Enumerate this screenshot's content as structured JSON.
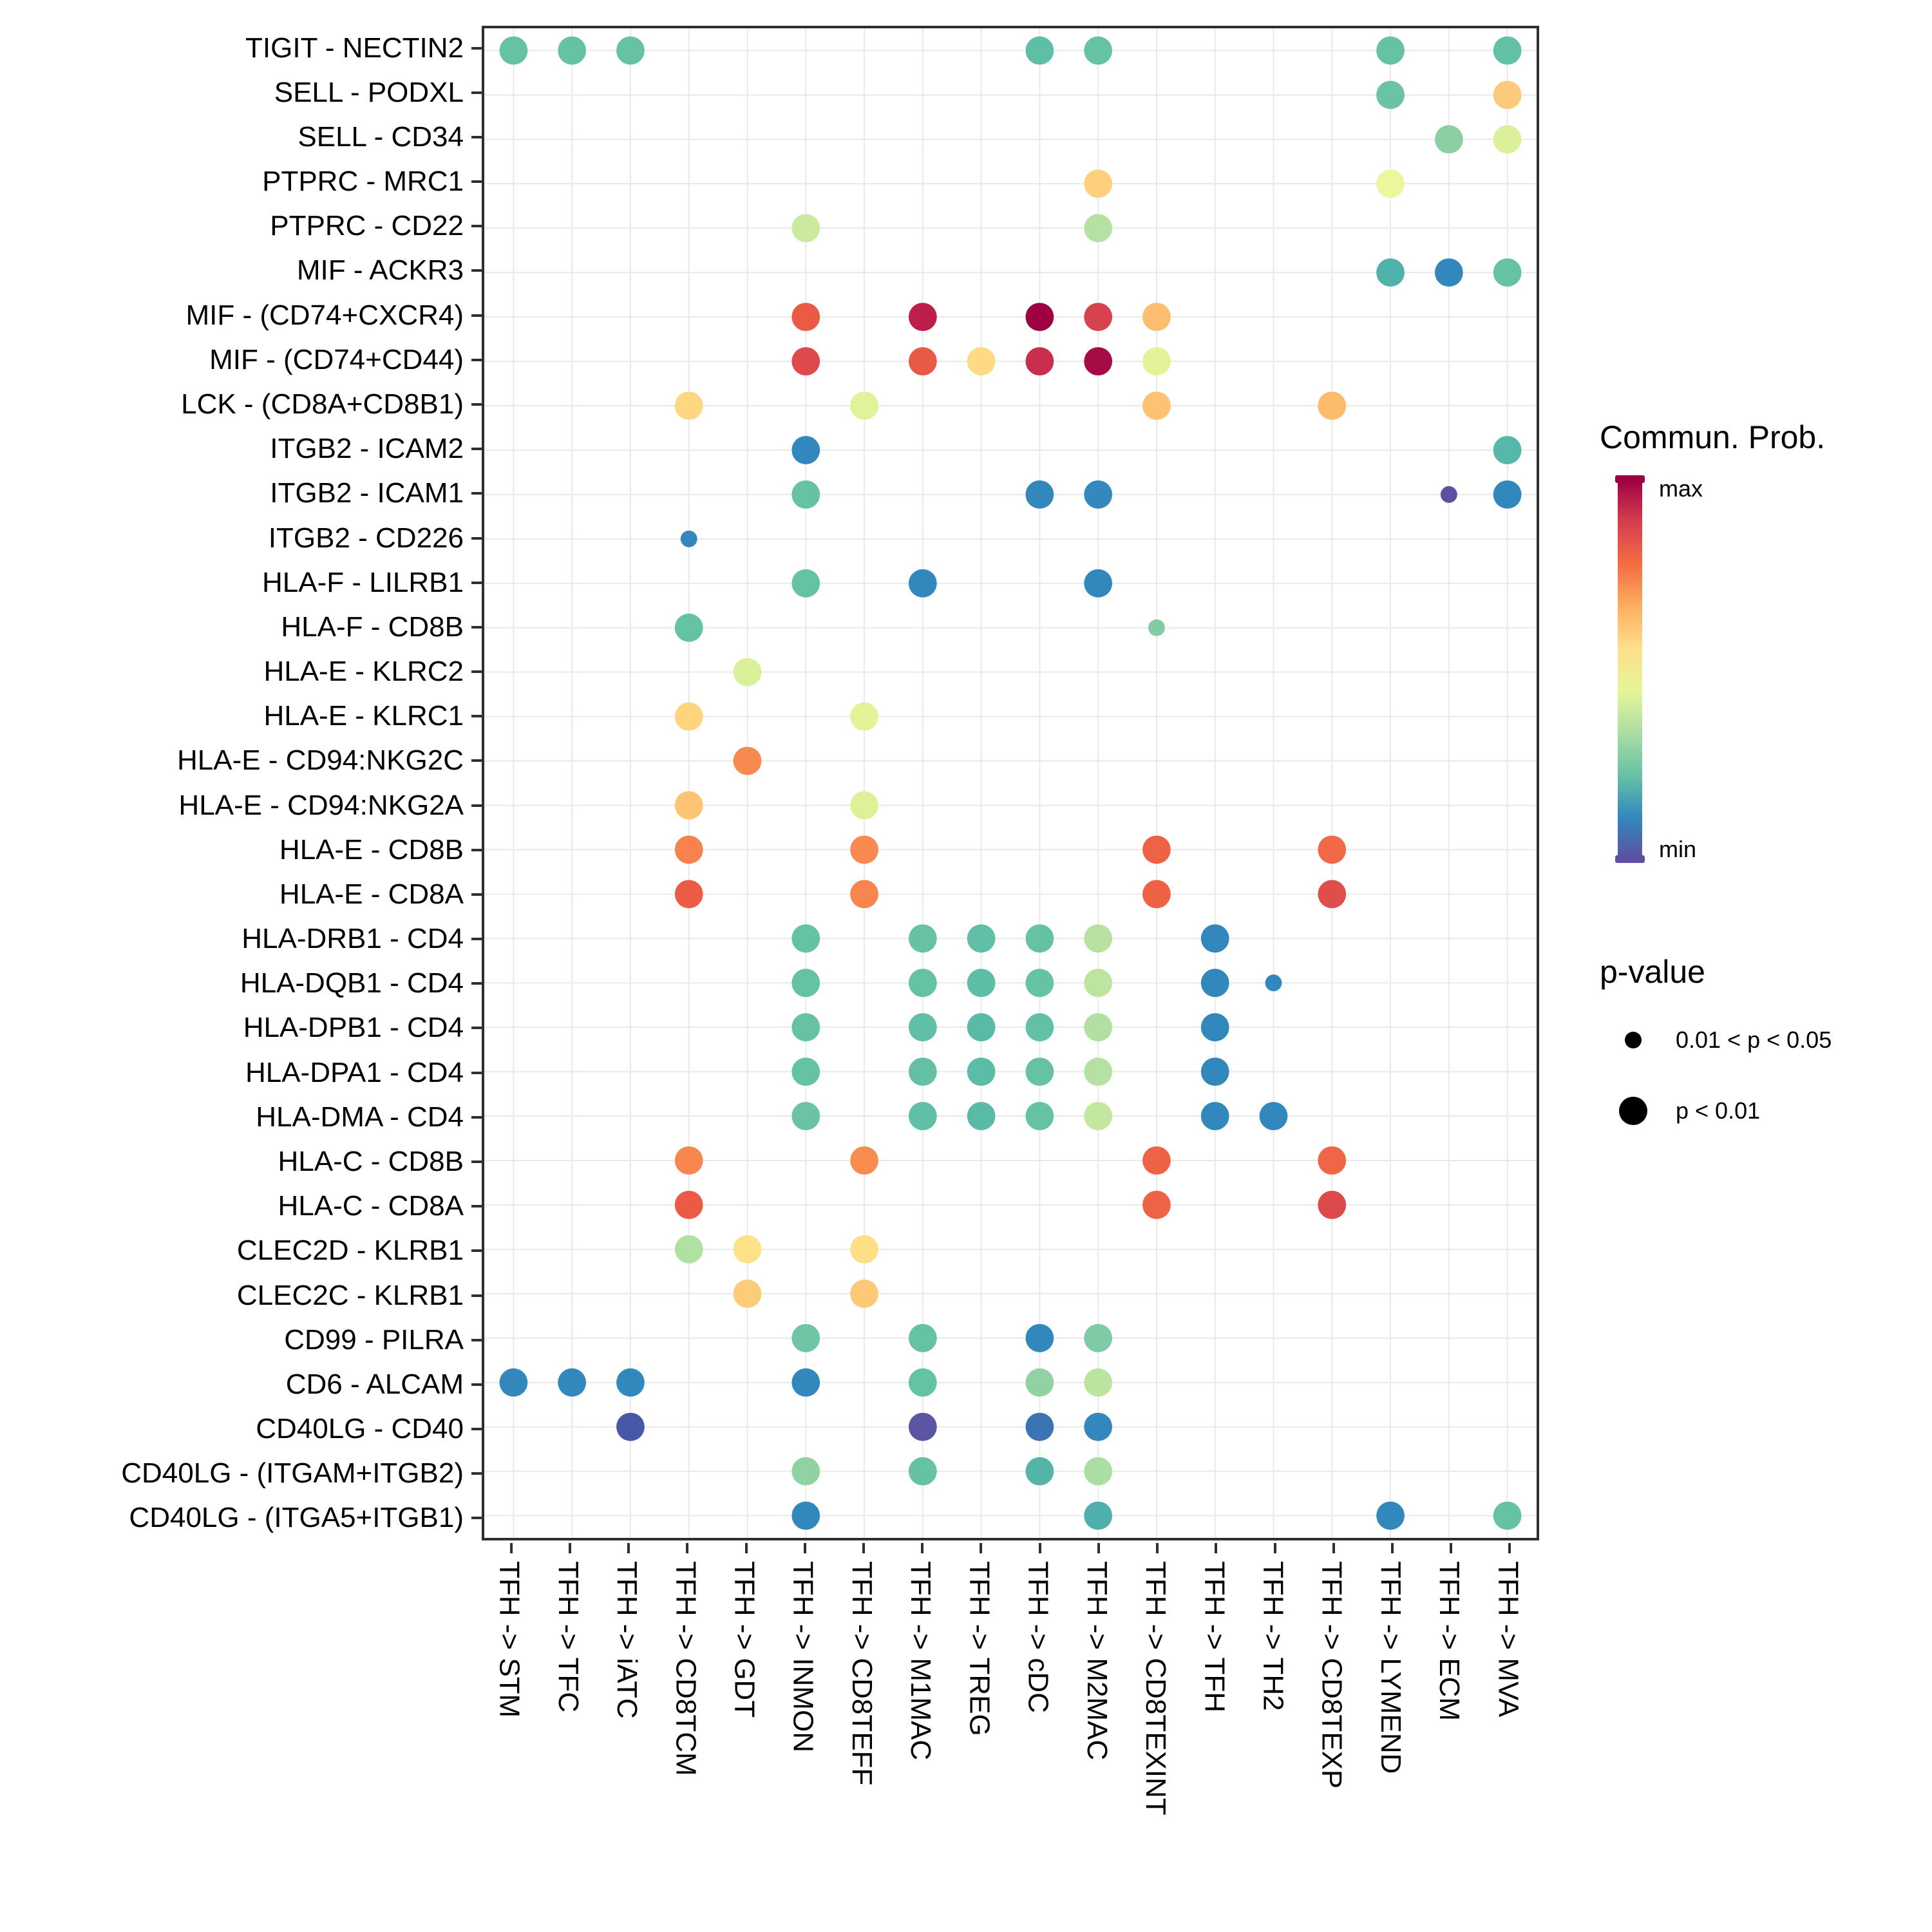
{
  "chart_data": {
    "type": "bubble",
    "description": "Cell-cell communication dot plot: ligand-receptor pairs (rows) vs sender->receiver cell pairs (columns); dot color = communication probability, dot size = p-value class",
    "x_categories": [
      "TFH -> STM",
      "TFH -> TFC",
      "TFH -> iATC",
      "TFH -> CD8TCM",
      "TFH -> GDT",
      "TFH -> INMON",
      "TFH -> CD8TEFF",
      "TFH -> M1MAC",
      "TFH -> TREG",
      "TFH -> cDC",
      "TFH -> M2MAC",
      "TFH -> CD8TEXINT",
      "TFH -> TFH",
      "TFH -> TH2",
      "TFH -> CD8TEXP",
      "TFH -> LYMEND",
      "TFH -> ECM",
      "TFH -> MVA"
    ],
    "y_categories": [
      "TIGIT - NECTIN2",
      "SELL - PODXL",
      "SELL - CD34",
      "PTPRC - MRC1",
      "PTPRC - CD22",
      "MIF - ACKR3",
      "MIF - (CD74+CXCR4)",
      "MIF - (CD74+CD44)",
      "LCK - (CD8A+CD8B1)",
      "ITGB2 - ICAM2",
      "ITGB2 - ICAM1",
      "ITGB2 - CD226",
      "HLA-F - LILRB1",
      "HLA-F - CD8B",
      "HLA-E - KLRC2",
      "HLA-E - KLRC1",
      "HLA-E - CD94:NKG2C",
      "HLA-E - CD94:NKG2A",
      "HLA-E - CD8B",
      "HLA-E - CD8A",
      "HLA-DRB1 - CD4",
      "HLA-DQB1 - CD4",
      "HLA-DPB1 - CD4",
      "HLA-DPA1 - CD4",
      "HLA-DMA - CD4",
      "HLA-C - CD8B",
      "HLA-C - CD8A",
      "CLEC2D - KLRB1",
      "CLEC2C - KLRB1",
      "CD99 - PILRA",
      "CD6 - ALCAM",
      "CD40LG - CD40",
      "CD40LG - (ITGAM+ITGB2)",
      "CD40LG - (ITGA5+ITGB1)"
    ],
    "color_legend": {
      "title": "Commun. Prob.",
      "max_label": "max",
      "min_label": "min",
      "gradient_top_to_bottom": [
        "#9E0142",
        "#D53E4F",
        "#F46D43",
        "#FDAE61",
        "#FEE08B",
        "#E6F598",
        "#ABDDA4",
        "#66C2A5",
        "#3288BD",
        "#5E4FA2"
      ]
    },
    "size_legend": {
      "title": "p-value",
      "items": [
        {
          "label": "0.01 < p < 0.05",
          "size": "small"
        },
        {
          "label": "p < 0.01",
          "size": "large"
        }
      ]
    },
    "size_key": {
      "L": "p < 0.01",
      "S": "0.01 < p < 0.05"
    },
    "points": [
      {
        "r": 0,
        "c": 0,
        "p": "L",
        "col": "#66C2A5"
      },
      {
        "r": 0,
        "c": 1,
        "p": "L",
        "col": "#66C2A5"
      },
      {
        "r": 0,
        "c": 2,
        "p": "L",
        "col": "#66C2A5"
      },
      {
        "r": 0,
        "c": 9,
        "p": "L",
        "col": "#5FBFA6"
      },
      {
        "r": 0,
        "c": 10,
        "p": "L",
        "col": "#66C2A5"
      },
      {
        "r": 0,
        "c": 15,
        "p": "L",
        "col": "#66C2A5"
      },
      {
        "r": 0,
        "c": 17,
        "p": "L",
        "col": "#63C1A5"
      },
      {
        "r": 1,
        "c": 15,
        "p": "L",
        "col": "#6AC3A4"
      },
      {
        "r": 1,
        "c": 17,
        "p": "L",
        "col": "#FDC97A"
      },
      {
        "r": 2,
        "c": 16,
        "p": "L",
        "col": "#8CCFA5"
      },
      {
        "r": 2,
        "c": 17,
        "p": "L",
        "col": "#DCF09A"
      },
      {
        "r": 3,
        "c": 10,
        "p": "L",
        "col": "#FDD07D"
      },
      {
        "r": 3,
        "c": 15,
        "p": "L",
        "col": "#ECF69D"
      },
      {
        "r": 4,
        "c": 5,
        "p": "L",
        "col": "#CBEA9E"
      },
      {
        "r": 4,
        "c": 10,
        "p": "L",
        "col": "#B5E2A2"
      },
      {
        "r": 5,
        "c": 15,
        "p": "L",
        "col": "#50B2AB"
      },
      {
        "r": 5,
        "c": 16,
        "p": "L",
        "col": "#3288BD"
      },
      {
        "r": 5,
        "c": 17,
        "p": "L",
        "col": "#66C2A5"
      },
      {
        "r": 6,
        "c": 5,
        "p": "L",
        "col": "#EB5A45"
      },
      {
        "r": 6,
        "c": 7,
        "p": "L",
        "col": "#BB1F4A"
      },
      {
        "r": 6,
        "c": 9,
        "p": "L",
        "col": "#9E0142"
      },
      {
        "r": 6,
        "c": 10,
        "p": "L",
        "col": "#D6424E"
      },
      {
        "r": 6,
        "c": 11,
        "p": "L",
        "col": "#FDBF6F"
      },
      {
        "r": 7,
        "c": 5,
        "p": "L",
        "col": "#DE4A4C"
      },
      {
        "r": 7,
        "c": 7,
        "p": "L",
        "col": "#E95A46"
      },
      {
        "r": 7,
        "c": 8,
        "p": "L",
        "col": "#FEDA85"
      },
      {
        "r": 7,
        "c": 9,
        "p": "L",
        "col": "#C92E4C"
      },
      {
        "r": 7,
        "c": 10,
        "p": "L",
        "col": "#A70B45"
      },
      {
        "r": 7,
        "c": 11,
        "p": "L",
        "col": "#E4F398"
      },
      {
        "r": 8,
        "c": 3,
        "p": "L",
        "col": "#FED783"
      },
      {
        "r": 8,
        "c": 6,
        "p": "L",
        "col": "#E0F29A"
      },
      {
        "r": 8,
        "c": 11,
        "p": "L",
        "col": "#FDC272"
      },
      {
        "r": 8,
        "c": 14,
        "p": "L",
        "col": "#FDBB6C"
      },
      {
        "r": 9,
        "c": 5,
        "p": "L",
        "col": "#3288BD"
      },
      {
        "r": 9,
        "c": 17,
        "p": "L",
        "col": "#57B7A9"
      },
      {
        "r": 10,
        "c": 5,
        "p": "L",
        "col": "#66C2A5"
      },
      {
        "r": 10,
        "c": 9,
        "p": "L",
        "col": "#3288BD"
      },
      {
        "r": 10,
        "c": 10,
        "p": "L",
        "col": "#3389BD"
      },
      {
        "r": 10,
        "c": 16,
        "p": "S",
        "col": "#5E4FA2"
      },
      {
        "r": 10,
        "c": 17,
        "p": "L",
        "col": "#3288BD"
      },
      {
        "r": 11,
        "c": 3,
        "p": "S",
        "col": "#3288BD"
      },
      {
        "r": 12,
        "c": 5,
        "p": "L",
        "col": "#66C2A5"
      },
      {
        "r": 12,
        "c": 7,
        "p": "L",
        "col": "#3288BD"
      },
      {
        "r": 12,
        "c": 10,
        "p": "L",
        "col": "#3288BD"
      },
      {
        "r": 13,
        "c": 3,
        "p": "L",
        "col": "#66C2A5"
      },
      {
        "r": 13,
        "c": 11,
        "p": "S",
        "col": "#82CCA4"
      },
      {
        "r": 14,
        "c": 4,
        "p": "L",
        "col": "#DBF09A"
      },
      {
        "r": 15,
        "c": 3,
        "p": "L",
        "col": "#FED47E"
      },
      {
        "r": 15,
        "c": 6,
        "p": "L",
        "col": "#E4F398"
      },
      {
        "r": 16,
        "c": 4,
        "p": "L",
        "col": "#F78B4F"
      },
      {
        "r": 17,
        "c": 3,
        "p": "L",
        "col": "#FDC473"
      },
      {
        "r": 17,
        "c": 6,
        "p": "L",
        "col": "#DEF199"
      },
      {
        "r": 18,
        "c": 3,
        "p": "L",
        "col": "#F8814D"
      },
      {
        "r": 18,
        "c": 6,
        "p": "L",
        "col": "#F88A50"
      },
      {
        "r": 18,
        "c": 11,
        "p": "L",
        "col": "#EF6345"
      },
      {
        "r": 18,
        "c": 14,
        "p": "L",
        "col": "#F16947"
      },
      {
        "r": 19,
        "c": 3,
        "p": "L",
        "col": "#EC5C45"
      },
      {
        "r": 19,
        "c": 6,
        "p": "L",
        "col": "#F8854E"
      },
      {
        "r": 19,
        "c": 11,
        "p": "L",
        "col": "#EE6144"
      },
      {
        "r": 19,
        "c": 14,
        "p": "L",
        "col": "#E04E4B"
      },
      {
        "r": 20,
        "c": 5,
        "p": "L",
        "col": "#66C2A5"
      },
      {
        "r": 20,
        "c": 7,
        "p": "L",
        "col": "#66C2A5"
      },
      {
        "r": 20,
        "c": 8,
        "p": "L",
        "col": "#60BFA6"
      },
      {
        "r": 20,
        "c": 9,
        "p": "L",
        "col": "#66C2A5"
      },
      {
        "r": 20,
        "c": 10,
        "p": "L",
        "col": "#B7E2A2"
      },
      {
        "r": 20,
        "c": 12,
        "p": "L",
        "col": "#3288BD"
      },
      {
        "r": 21,
        "c": 5,
        "p": "L",
        "col": "#66C2A5"
      },
      {
        "r": 21,
        "c": 7,
        "p": "L",
        "col": "#66C2A5"
      },
      {
        "r": 21,
        "c": 8,
        "p": "L",
        "col": "#5DBDA7"
      },
      {
        "r": 21,
        "c": 9,
        "p": "L",
        "col": "#66C2A5"
      },
      {
        "r": 21,
        "c": 10,
        "p": "L",
        "col": "#BEE5A0"
      },
      {
        "r": 21,
        "c": 12,
        "p": "L",
        "col": "#3288BD"
      },
      {
        "r": 21,
        "c": 13,
        "p": "S",
        "col": "#3288BD"
      },
      {
        "r": 22,
        "c": 5,
        "p": "L",
        "col": "#66C2A5"
      },
      {
        "r": 22,
        "c": 7,
        "p": "L",
        "col": "#60BFA6"
      },
      {
        "r": 22,
        "c": 8,
        "p": "L",
        "col": "#59BAA8"
      },
      {
        "r": 22,
        "c": 9,
        "p": "L",
        "col": "#62C0A6"
      },
      {
        "r": 22,
        "c": 10,
        "p": "L",
        "col": "#B2E0A3"
      },
      {
        "r": 22,
        "c": 12,
        "p": "L",
        "col": "#3288BD"
      },
      {
        "r": 23,
        "c": 5,
        "p": "L",
        "col": "#66C2A5"
      },
      {
        "r": 23,
        "c": 7,
        "p": "L",
        "col": "#63C0A5"
      },
      {
        "r": 23,
        "c": 8,
        "p": "L",
        "col": "#5BBCA7"
      },
      {
        "r": 23,
        "c": 9,
        "p": "L",
        "col": "#66C2A5"
      },
      {
        "r": 23,
        "c": 10,
        "p": "L",
        "col": "#B5E1A2"
      },
      {
        "r": 23,
        "c": 12,
        "p": "L",
        "col": "#3288BD"
      },
      {
        "r": 24,
        "c": 5,
        "p": "L",
        "col": "#6AC3A4"
      },
      {
        "r": 24,
        "c": 7,
        "p": "L",
        "col": "#60BFA6"
      },
      {
        "r": 24,
        "c": 8,
        "p": "L",
        "col": "#59BAA8"
      },
      {
        "r": 24,
        "c": 9,
        "p": "L",
        "col": "#66C2A5"
      },
      {
        "r": 24,
        "c": 10,
        "p": "L",
        "col": "#C3E79F"
      },
      {
        "r": 24,
        "c": 12,
        "p": "L",
        "col": "#3288BD"
      },
      {
        "r": 24,
        "c": 13,
        "p": "L",
        "col": "#3288BD"
      },
      {
        "r": 25,
        "c": 3,
        "p": "L",
        "col": "#F8864E"
      },
      {
        "r": 25,
        "c": 6,
        "p": "L",
        "col": "#F98C51"
      },
      {
        "r": 25,
        "c": 11,
        "p": "L",
        "col": "#EE6245"
      },
      {
        "r": 25,
        "c": 14,
        "p": "L",
        "col": "#F06546"
      },
      {
        "r": 26,
        "c": 3,
        "p": "L",
        "col": "#EB5A45"
      },
      {
        "r": 26,
        "c": 11,
        "p": "L",
        "col": "#EE6245"
      },
      {
        "r": 26,
        "c": 14,
        "p": "L",
        "col": "#DE494C"
      },
      {
        "r": 27,
        "c": 3,
        "p": "L",
        "col": "#B1E0A3"
      },
      {
        "r": 27,
        "c": 4,
        "p": "L",
        "col": "#FEE288"
      },
      {
        "r": 27,
        "c": 6,
        "p": "L",
        "col": "#FEDF85"
      },
      {
        "r": 28,
        "c": 4,
        "p": "L",
        "col": "#FDCC79"
      },
      {
        "r": 28,
        "c": 6,
        "p": "L",
        "col": "#FDC976"
      },
      {
        "r": 29,
        "c": 5,
        "p": "L",
        "col": "#6FC5A4"
      },
      {
        "r": 29,
        "c": 7,
        "p": "L",
        "col": "#66C2A5"
      },
      {
        "r": 29,
        "c": 9,
        "p": "L",
        "col": "#3288BD"
      },
      {
        "r": 29,
        "c": 10,
        "p": "L",
        "col": "#7ECBA5"
      },
      {
        "r": 30,
        "c": 0,
        "p": "L",
        "col": "#3288BD"
      },
      {
        "r": 30,
        "c": 1,
        "p": "L",
        "col": "#3288BD"
      },
      {
        "r": 30,
        "c": 2,
        "p": "L",
        "col": "#3288BD"
      },
      {
        "r": 30,
        "c": 5,
        "p": "L",
        "col": "#3288BD"
      },
      {
        "r": 30,
        "c": 7,
        "p": "L",
        "col": "#66C2A5"
      },
      {
        "r": 30,
        "c": 9,
        "p": "L",
        "col": "#90D2A4"
      },
      {
        "r": 30,
        "c": 10,
        "p": "L",
        "col": "#BCE4A1"
      },
      {
        "r": 31,
        "c": 2,
        "p": "L",
        "col": "#4857A6"
      },
      {
        "r": 31,
        "c": 7,
        "p": "L",
        "col": "#5B55A4"
      },
      {
        "r": 31,
        "c": 9,
        "p": "L",
        "col": "#3A74B5"
      },
      {
        "r": 31,
        "c": 10,
        "p": "L",
        "col": "#3288BD"
      },
      {
        "r": 32,
        "c": 5,
        "p": "L",
        "col": "#90D2A4"
      },
      {
        "r": 32,
        "c": 7,
        "p": "L",
        "col": "#66C2A5"
      },
      {
        "r": 32,
        "c": 9,
        "p": "L",
        "col": "#54B4AA"
      },
      {
        "r": 32,
        "c": 10,
        "p": "L",
        "col": "#ACDEA3"
      },
      {
        "r": 33,
        "c": 5,
        "p": "L",
        "col": "#3288BD"
      },
      {
        "r": 33,
        "c": 10,
        "p": "L",
        "col": "#4FAFAC"
      },
      {
        "r": 33,
        "c": 15,
        "p": "L",
        "col": "#3288BD"
      },
      {
        "r": 33,
        "c": 17,
        "p": "L",
        "col": "#66C2A5"
      }
    ]
  }
}
